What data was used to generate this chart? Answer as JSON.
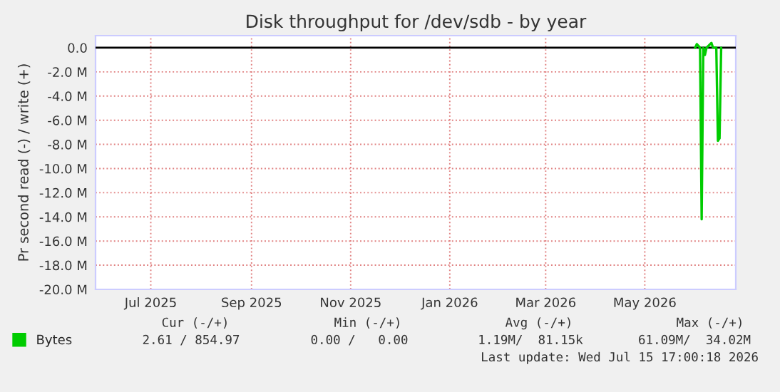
{
  "chart_data": {
    "type": "line",
    "title": "Disk throughput for /dev/sdb - by year",
    "ylabel": "Pr second read (-) / write (+)",
    "xlim": [
      "2025-05-28",
      "2026-06-26"
    ],
    "xticks": [
      {
        "value": "2025-07-01",
        "label": "Jul 2025"
      },
      {
        "value": "2025-09-01",
        "label": "Sep 2025"
      },
      {
        "value": "2025-11-01",
        "label": "Nov 2025"
      },
      {
        "value": "2026-01-01",
        "label": "Jan 2026"
      },
      {
        "value": "2026-03-01",
        "label": "Mar 2026"
      },
      {
        "value": "2026-05-01",
        "label": "May 2026"
      }
    ],
    "ylim": [
      -20,
      1
    ],
    "yticks": [
      {
        "value": 0,
        "label": "0.0"
      },
      {
        "value": -2,
        "label": "-2.0 M"
      },
      {
        "value": -4,
        "label": "-4.0 M"
      },
      {
        "value": -6,
        "label": "-6.0 M"
      },
      {
        "value": -8,
        "label": "-8.0 M"
      },
      {
        "value": -10,
        "label": "-10.0 M"
      },
      {
        "value": -12,
        "label": "-12.0 M"
      },
      {
        "value": -14,
        "label": "-14.0 M"
      },
      {
        "value": -16,
        "label": "-16.0 M"
      },
      {
        "value": -18,
        "label": "-18.0 M"
      },
      {
        "value": -20,
        "label": "-20.0 M"
      }
    ],
    "series": [
      {
        "name": "Bytes",
        "color": "#00cc00",
        "x": [
          "2026-06-01",
          "2026-06-02",
          "2026-06-04",
          "2026-06-05",
          "2026-06-06",
          "2026-06-07",
          "2026-06-08",
          "2026-06-11",
          "2026-06-12",
          "2026-06-14",
          "2026-06-15",
          "2026-06-16",
          "2026-06-17"
        ],
        "values": [
          0,
          0.3,
          0,
          -14.2,
          0,
          -0.6,
          0,
          0.4,
          0,
          0,
          -7.7,
          -7.5,
          0
        ]
      }
    ],
    "ref_lines": [
      {
        "axis": "y",
        "value": 0,
        "color": "#000000"
      }
    ],
    "grid": true,
    "legend": "bottom left",
    "marker": "none",
    "line_style": "solid",
    "annotations": [
      "Cur (-/+)",
      "Min (-/+)",
      "Avg (-/+)",
      "Max (-/+)",
      "2.61 / 854.97",
      "0.00 /   0.00",
      "1.19M/  81.15k",
      "61.09M/  34.02M",
      "Last update: Wed Jul 15 17:00:18 2026"
    ]
  }
}
